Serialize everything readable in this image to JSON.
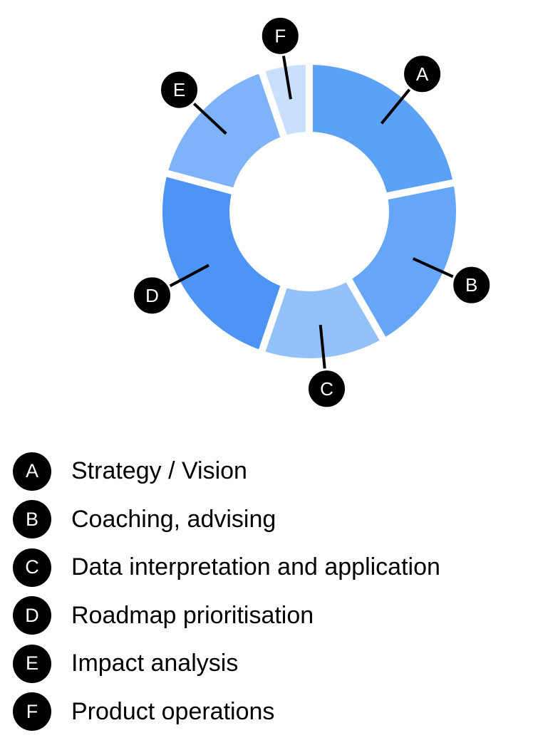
{
  "chart_data": {
    "type": "pie",
    "variant": "donut",
    "legend_placement": "bottom",
    "slices": [
      {
        "id": "A",
        "label": "Strategy / Vision",
        "value": 21,
        "color": "#5ca1f8"
      },
      {
        "id": "B",
        "label": "Coaching, advising",
        "value": 19,
        "color": "#65a6f8"
      },
      {
        "id": "C",
        "label": "Data interpretation and application",
        "value": 13,
        "color": "#93c1fa"
      },
      {
        "id": "D",
        "label": "Roadmap prioritisation",
        "value": 23,
        "color": "#4e93f6"
      },
      {
        "id": "E",
        "label": "Impact analysis",
        "value": 15,
        "color": "#7fb3f9"
      },
      {
        "id": "F",
        "label": "Product operations",
        "value": 5,
        "color": "#c8dffd"
      }
    ]
  }
}
